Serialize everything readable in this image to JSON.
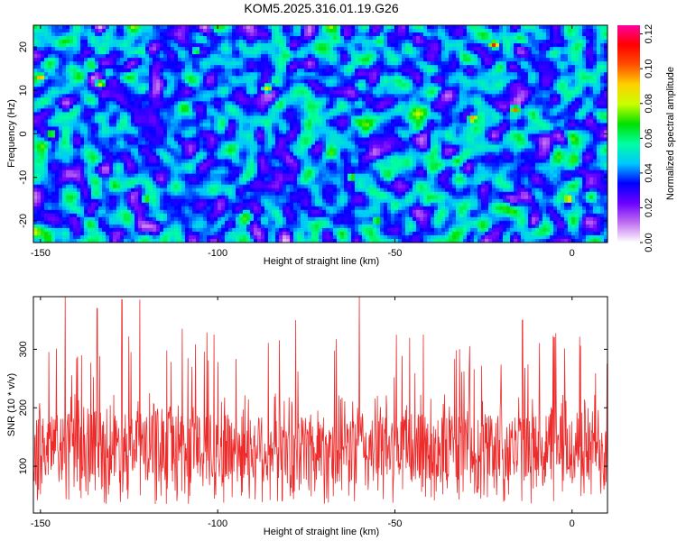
{
  "title": "KOM5.2025.316.01.19.G26",
  "colors": {
    "snr_line": "#ee2b2b",
    "frame": "#000000",
    "background": "#ffffff"
  },
  "chart_data": [
    {
      "type": "heatmap",
      "title": "KOM5.2025.316.01.19.G26",
      "xlabel": "Height of straight line (km)",
      "ylabel": "Frequency (Hz)",
      "xlim": [
        -152,
        10
      ],
      "ylim": [
        -25,
        25
      ],
      "x_ticks": [
        -150,
        -100,
        -50,
        0
      ],
      "x_tick_labels": [
        "-150",
        "-100",
        "-50",
        "0"
      ],
      "y_ticks": [
        -20,
        -10,
        0,
        10,
        20
      ],
      "y_tick_labels": [
        "-20",
        "-10",
        "0",
        "10",
        "20"
      ],
      "colorbar": {
        "label": "Normalized spectral amplitude",
        "range": [
          0,
          0.125
        ],
        "ticks": [
          0,
          0.02,
          0.04,
          0.06,
          0.08,
          0.1,
          0.12
        ],
        "tick_labels": [
          "0.00",
          "0.02",
          "0.04",
          "0.06",
          "0.08",
          "0.10",
          "0.12"
        ],
        "colormap": [
          "#ffffff",
          "#c070f0",
          "#6a00ff",
          "#0000ff",
          "#00c8ff",
          "#00ffa0",
          "#00e000",
          "#c8ff00",
          "#ffd000",
          "#ff5000",
          "#ff0000",
          "#ff00a0"
        ]
      },
      "description_values": "noise-like speckle field, typical amplitude 0.02-0.06, sparse peaks up to about 0.11",
      "peaks": [
        {
          "x": -150,
          "y": 13,
          "v": 0.1
        },
        {
          "x": -133,
          "y": 11.5,
          "v": 0.09
        },
        {
          "x": -22,
          "y": 20.5,
          "v": 0.11
        },
        {
          "x": -16,
          "y": 5.5,
          "v": 0.1
        },
        {
          "x": -28,
          "y": 3.5,
          "v": 0.1
        },
        {
          "x": -1,
          "y": -15,
          "v": 0.1
        },
        {
          "x": -86,
          "y": 10.5,
          "v": 0.09
        },
        {
          "x": -55,
          "y": -20,
          "v": 0.08
        },
        {
          "x": -62,
          "y": -10,
          "v": 0.08
        },
        {
          "x": -147,
          "y": 0,
          "v": 0.08
        },
        {
          "x": -120,
          "y": -15,
          "v": 0.08
        },
        {
          "x": -106,
          "y": 19,
          "v": 0.07
        }
      ]
    },
    {
      "type": "line",
      "xlabel": "Height of straight line (km)",
      "ylabel": "SNR (10 * v/v)",
      "xlim": [
        -152,
        10
      ],
      "ylim": [
        20,
        390
      ],
      "x_ticks": [
        -150,
        -100,
        -50,
        0
      ],
      "x_tick_labels": [
        "-150",
        "-100",
        "-50",
        "0"
      ],
      "y_ticks": [
        100,
        200,
        300
      ],
      "y_tick_labels": [
        "100",
        "200",
        "300"
      ],
      "series": [
        {
          "name": "SNR",
          "color": "#ee2b2b",
          "baseline": 130,
          "typical_range": [
            40,
            230
          ]
        }
      ],
      "peaks": [
        {
          "x": -143,
          "y": 390
        },
        {
          "x": -134,
          "y": 370
        },
        {
          "x": -127,
          "y": 385
        },
        {
          "x": -122,
          "y": 385
        },
        {
          "x": -110,
          "y": 335
        },
        {
          "x": -101,
          "y": 325
        },
        {
          "x": -78,
          "y": 350
        },
        {
          "x": -60,
          "y": 390
        },
        {
          "x": -42,
          "y": 325
        },
        {
          "x": -14,
          "y": 350
        },
        {
          "x": -5,
          "y": 320
        }
      ]
    }
  ]
}
